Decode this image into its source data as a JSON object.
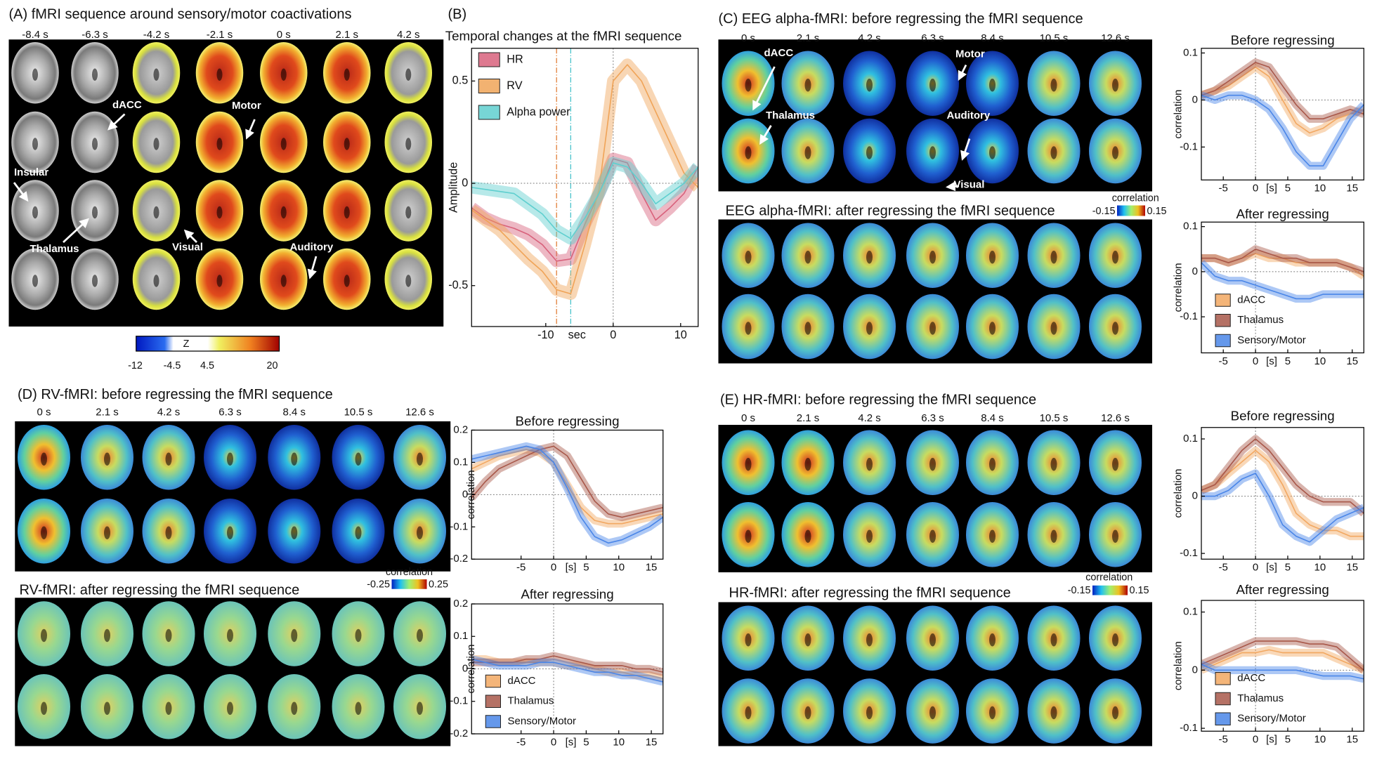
{
  "panels": {
    "A": {
      "title": "(A) fMRI sequence around sensory/motor coactivations",
      "times": [
        "-8.4 s",
        "-6.3 s",
        "-4.2 s",
        "-2.1 s",
        "0 s",
        "2.1 s",
        "4.2 s"
      ],
      "labels": [
        "dACC",
        "Motor",
        "Insular",
        "Thalamus",
        "Visual",
        "Auditory"
      ],
      "colorbar": {
        "label": "Z",
        "ticks": [
          -12,
          -4.5,
          4.5,
          20
        ]
      }
    },
    "B": {
      "label": "(B)"
    },
    "C": {
      "title_before": "(C) EEG alpha-fMRI: before regressing the fMRI sequence",
      "title_after": "EEG alpha-fMRI: after regressing the fMRI sequence",
      "times": [
        "0 s",
        "2.1 s",
        "4.2 s",
        "6.3 s",
        "8.4 s",
        "10.5 s",
        "12.6 s"
      ],
      "labels": [
        "dACC",
        "Motor",
        "Thalamus",
        "Auditory",
        "Visual"
      ],
      "colorbar": {
        "label": "correlation",
        "min": -0.15,
        "max": 0.15
      }
    },
    "D": {
      "title_before": "(D) RV-fMRI: before regressing the fMRI sequence",
      "title_after": "RV-fMRI: after regressing the fMRI sequence",
      "times": [
        "0 s",
        "2.1 s",
        "4.2 s",
        "6.3 s",
        "8.4 s",
        "10.5 s",
        "12.6 s"
      ],
      "colorbar": {
        "label": "correlation",
        "min": -0.25,
        "max": 0.25
      }
    },
    "E": {
      "title_before": "(E) HR-fMRI: before regressing the fMRI sequence",
      "title_after": "HR-fMRI: after regressing the fMRI sequence",
      "times": [
        "0 s",
        "2.1 s",
        "4.2 s",
        "6.3 s",
        "8.4 s",
        "10.5 s",
        "12.6 s"
      ],
      "colorbar": {
        "label": "correlation",
        "min": -0.15,
        "max": 0.15
      }
    }
  },
  "chart_data": [
    {
      "type": "line",
      "title": "Temporal changes at the fMRI sequence",
      "xlabel": "sec",
      "ylabel": "Amplitude",
      "x": [
        -21,
        -18.9,
        -16.8,
        -14.7,
        -12.6,
        -10.5,
        -8.4,
        -6.3,
        -4.2,
        -2.1,
        0,
        2.1,
        4.2,
        6.3,
        8.4,
        10.5,
        12.6
      ],
      "xlim": [
        -21,
        12.6
      ],
      "xticks": [
        -10,
        0,
        10
      ],
      "ylim": [
        -0.7,
        0.66
      ],
      "yticks": [
        -0.5,
        0,
        0.5
      ],
      "legend": "upper left",
      "vlines": [
        {
          "x": -8.4,
          "color": "#e07a30"
        },
        {
          "x": -6.3,
          "color": "#40c0c8"
        }
      ],
      "series": [
        {
          "name": "HR",
          "color": "#d8627c",
          "values": [
            -0.12,
            -0.17,
            -0.2,
            -0.22,
            -0.25,
            -0.3,
            -0.38,
            -0.37,
            -0.2,
            -0.05,
            0.12,
            0.1,
            -0.05,
            -0.18,
            -0.12,
            -0.05,
            0.08
          ]
        },
        {
          "name": "RV",
          "color": "#f0a458",
          "values": [
            -0.13,
            -0.18,
            -0.23,
            -0.3,
            -0.37,
            -0.43,
            -0.52,
            -0.54,
            -0.3,
            -0.03,
            0.5,
            0.58,
            0.5,
            0.35,
            0.2,
            0.05,
            -0.02
          ]
        },
        {
          "name": "Alpha power",
          "color": "#5fcfcf",
          "values": [
            -0.02,
            -0.03,
            -0.04,
            -0.05,
            -0.1,
            -0.15,
            -0.23,
            -0.27,
            -0.17,
            -0.05,
            0.1,
            0.08,
            0,
            -0.1,
            -0.05,
            0,
            0.08
          ]
        }
      ]
    },
    {
      "type": "line",
      "title": "Before regressing",
      "xlabel": "[s]",
      "ylabel": "correlation",
      "x": [
        -8.4,
        -6.3,
        -4.2,
        -2.1,
        0,
        2.1,
        4.2,
        6.3,
        8.4,
        10.5,
        12.6,
        14.7,
        16.8
      ],
      "xlim": [
        -8.4,
        16.8
      ],
      "xticks": [
        -5,
        0,
        5,
        10,
        15
      ],
      "ylim": [
        -0.17,
        0.11
      ],
      "yticks": [
        -0.1,
        0,
        0.1
      ],
      "series": [
        {
          "color": "#f2a862",
          "values": [
            0.01,
            0.02,
            0.03,
            0.05,
            0.07,
            0.05,
            0,
            -0.05,
            -0.07,
            -0.06,
            -0.04,
            -0.03,
            -0.02
          ]
        },
        {
          "color": "#a8584a",
          "values": [
            0.01,
            0.02,
            0.04,
            0.06,
            0.08,
            0.07,
            0.03,
            -0.01,
            -0.04,
            -0.04,
            -0.03,
            -0.02,
            -0.03
          ]
        },
        {
          "color": "#4a86e8",
          "values": [
            0.01,
            0,
            0.01,
            0.01,
            0,
            -0.02,
            -0.06,
            -0.11,
            -0.14,
            -0.14,
            -0.09,
            -0.04,
            -0.01
          ]
        }
      ]
    },
    {
      "type": "line",
      "title": "After regressing",
      "xlabel": "[s]",
      "ylabel": "correlation",
      "x": [
        -8.4,
        -6.3,
        -4.2,
        -2.1,
        0,
        2.1,
        4.2,
        6.3,
        8.4,
        10.5,
        12.6,
        14.7,
        16.8
      ],
      "xlim": [
        -8.4,
        16.8
      ],
      "xticks": [
        -5,
        0,
        5,
        10,
        15
      ],
      "ylim": [
        -0.18,
        0.11
      ],
      "yticks": [
        -0.1,
        0,
        0.1
      ],
      "legend": "lower left",
      "series": [
        {
          "name": "dACC",
          "color": "#f2a862",
          "values": [
            0.03,
            0.03,
            0.02,
            0.03,
            0.04,
            0.03,
            0.03,
            0.02,
            0.02,
            0.02,
            0.02,
            0.01,
            -0.01
          ]
        },
        {
          "name": "Thalamus",
          "color": "#a8584a",
          "values": [
            0.03,
            0.03,
            0.02,
            0.03,
            0.05,
            0.04,
            0.03,
            0.03,
            0.02,
            0.02,
            0.02,
            0.01,
            0
          ]
        },
        {
          "name": "Sensory/Motor",
          "color": "#4a86e8",
          "values": [
            0.02,
            -0.01,
            -0.02,
            -0.02,
            -0.03,
            -0.04,
            -0.05,
            -0.06,
            -0.06,
            -0.05,
            -0.05,
            -0.05,
            -0.05
          ]
        }
      ]
    },
    {
      "type": "line",
      "title": "Before regressing",
      "xlabel": "[s]",
      "ylabel": "correlation",
      "x": [
        -12.6,
        -10.5,
        -8.4,
        -6.3,
        -4.2,
        -2.1,
        0,
        2.1,
        4.2,
        6.3,
        8.4,
        10.5,
        12.6,
        14.7,
        16.8
      ],
      "xlim": [
        -12.6,
        16.8
      ],
      "xticks": [
        -5,
        0,
        5,
        10,
        15
      ],
      "ylim": [
        -0.2,
        0.2
      ],
      "yticks": [
        -0.2,
        -0.1,
        0,
        0.1,
        0.2
      ],
      "series": [
        {
          "color": "#f2a862",
          "values": [
            0.08,
            0.1,
            0.12,
            0.13,
            0.14,
            0.13,
            0.1,
            0.03,
            -0.04,
            -0.08,
            -0.09,
            -0.09,
            -0.08,
            -0.07,
            -0.06
          ]
        },
        {
          "color": "#a8584a",
          "values": [
            -0.01,
            0.04,
            0.08,
            0.1,
            0.12,
            0.14,
            0.15,
            0.12,
            0.05,
            -0.02,
            -0.06,
            -0.07,
            -0.06,
            -0.05,
            -0.04
          ]
        },
        {
          "color": "#4a86e8",
          "values": [
            0.11,
            0.12,
            0.13,
            0.14,
            0.15,
            0.14,
            0.1,
            0.02,
            -0.07,
            -0.13,
            -0.15,
            -0.14,
            -0.12,
            -0.1,
            -0.07
          ]
        }
      ]
    },
    {
      "type": "line",
      "title": "After regressing",
      "xlabel": "[s]",
      "ylabel": "correlation",
      "x": [
        -12.6,
        -10.5,
        -8.4,
        -6.3,
        -4.2,
        -2.1,
        0,
        2.1,
        4.2,
        6.3,
        8.4,
        10.5,
        12.6,
        14.7,
        16.8
      ],
      "xlim": [
        -12.6,
        16.8
      ],
      "xticks": [
        -5,
        0,
        5,
        10,
        15
      ],
      "ylim": [
        -0.2,
        0.2
      ],
      "yticks": [
        -0.2,
        -0.1,
        0,
        0.1,
        0.2
      ],
      "legend": "lower left",
      "series": [
        {
          "name": "dACC",
          "color": "#f2a862",
          "values": [
            0.03,
            0.03,
            0.02,
            0.02,
            0.02,
            0.02,
            0.02,
            0.01,
            0.01,
            0,
            -0.01,
            -0.01,
            -0.02,
            -0.02,
            -0.03
          ]
        },
        {
          "name": "Thalamus",
          "color": "#a8584a",
          "values": [
            0.02,
            0.02,
            0.02,
            0.02,
            0.03,
            0.03,
            0.04,
            0.03,
            0.02,
            0.01,
            0.01,
            0.01,
            0,
            0,
            -0.01
          ]
        },
        {
          "name": "Sensory/Motor",
          "color": "#4a86e8",
          "values": [
            0.03,
            0.02,
            0.01,
            0.01,
            0.01,
            0.02,
            0.02,
            0.01,
            0,
            -0.01,
            -0.01,
            -0.02,
            -0.02,
            -0.03,
            -0.04
          ]
        }
      ]
    },
    {
      "type": "line",
      "title": "Before regressing",
      "xlabel": "[s]",
      "ylabel": "correlation",
      "x": [
        -8.4,
        -6.3,
        -4.2,
        -2.1,
        0,
        2.1,
        4.2,
        6.3,
        8.4,
        10.5,
        12.6,
        14.7,
        16.8
      ],
      "xlim": [
        -8.4,
        16.8
      ],
      "xticks": [
        -5,
        0,
        5,
        10,
        15
      ],
      "ylim": [
        -0.11,
        0.12
      ],
      "yticks": [
        -0.1,
        0,
        0.1
      ],
      "series": [
        {
          "color": "#f2a862",
          "values": [
            0.01,
            0.02,
            0.04,
            0.06,
            0.08,
            0.06,
            0.02,
            -0.03,
            -0.05,
            -0.06,
            -0.06,
            -0.07,
            -0.07
          ]
        },
        {
          "color": "#a8584a",
          "values": [
            0.01,
            0.02,
            0.05,
            0.08,
            0.1,
            0.08,
            0.05,
            0.02,
            0,
            -0.01,
            -0.01,
            -0.01,
            -0.03
          ]
        },
        {
          "color": "#4a86e8",
          "values": [
            0,
            0,
            0.01,
            0.03,
            0.04,
            0,
            -0.05,
            -0.07,
            -0.08,
            -0.06,
            -0.04,
            -0.03,
            -0.02
          ]
        }
      ]
    },
    {
      "type": "line",
      "title": "After regressing",
      "xlabel": "[s]",
      "ylabel": "correlation",
      "x": [
        -8.4,
        -6.3,
        -4.2,
        -2.1,
        0,
        2.1,
        4.2,
        6.3,
        8.4,
        10.5,
        12.6,
        14.7,
        16.8
      ],
      "xlim": [
        -8.4,
        16.8
      ],
      "xticks": [
        -5,
        0,
        5,
        10,
        15
      ],
      "ylim": [
        -0.105,
        0.12
      ],
      "yticks": [
        -0.1,
        0,
        0.1
      ],
      "legend": "lower left",
      "series": [
        {
          "name": "dACC",
          "color": "#f2a862",
          "values": [
            0,
            0.01,
            0.02,
            0.03,
            0.03,
            0.035,
            0.03,
            0.03,
            0.03,
            0.03,
            0.02,
            0.01,
            0
          ]
        },
        {
          "name": "Thalamus",
          "color": "#a8584a",
          "values": [
            0.01,
            0.02,
            0.03,
            0.04,
            0.05,
            0.05,
            0.05,
            0.05,
            0.045,
            0.045,
            0.04,
            0.02,
            0
          ]
        },
        {
          "name": "Sensory/Motor",
          "color": "#4a86e8",
          "values": [
            0.01,
            0,
            0,
            0,
            0,
            0,
            0,
            0,
            -0.005,
            -0.01,
            -0.01,
            -0.01,
            -0.015
          ]
        }
      ]
    }
  ]
}
